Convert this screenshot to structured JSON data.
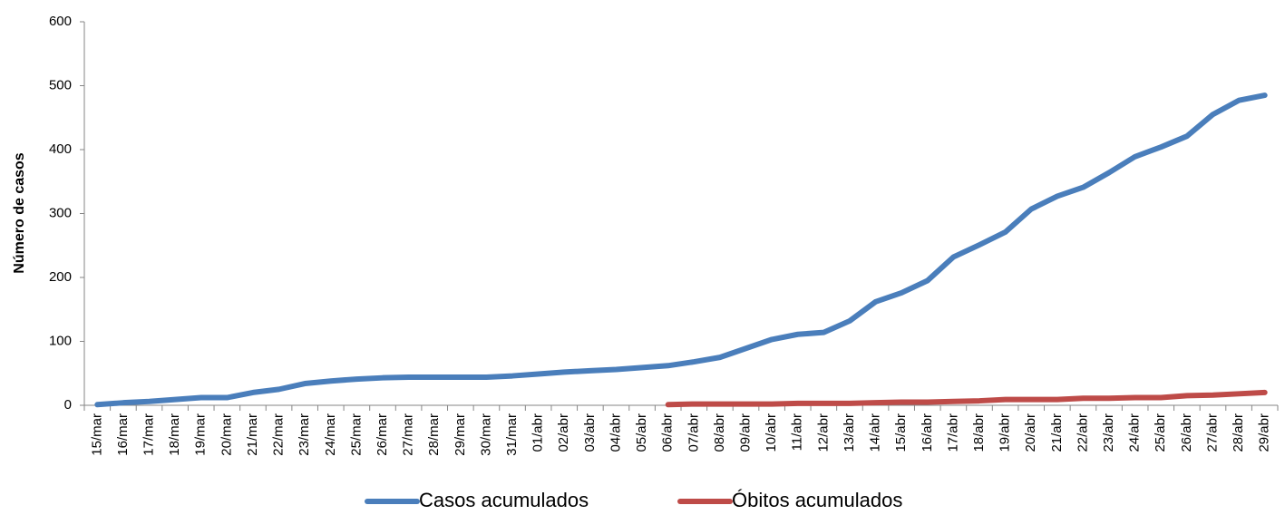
{
  "chart_data": {
    "type": "line",
    "ylabel": "Número de casos",
    "categories": [
      "15/mar",
      "16/mar",
      "17/mar",
      "18/mar",
      "19/mar",
      "20/mar",
      "21/mar",
      "22/mar",
      "23/mar",
      "24/mar",
      "25/mar",
      "26/mar",
      "27/mar",
      "28/mar",
      "29/mar",
      "30/mar",
      "31/mar",
      "01/abr",
      "02/abr",
      "03/abr",
      "04/abr",
      "05/abr",
      "06/abr",
      "07/abr",
      "08/abr",
      "09/abr",
      "10/abr",
      "11/abr",
      "12/abr",
      "13/abr",
      "14/abr",
      "15/abr",
      "16/abr",
      "17/abr",
      "18/abr",
      "19/abr",
      "20/abr",
      "21/abr",
      "22/abr",
      "23/abr",
      "24/abr",
      "25/abr",
      "26/abr",
      "27/abr",
      "28/abr",
      "29/abr"
    ],
    "series": [
      {
        "name": "Casos acumulados",
        "color": "#4a7ebb",
        "values": [
          1,
          4,
          6,
          9,
          12,
          12,
          20,
          25,
          34,
          38,
          41,
          43,
          44,
          44,
          44,
          44,
          46,
          49,
          52,
          54,
          56,
          59,
          62,
          68,
          75,
          89,
          103,
          111,
          114,
          132,
          162,
          176,
          195,
          232,
          251,
          271,
          307,
          327,
          341,
          364,
          389,
          404,
          421,
          455,
          477,
          485
        ]
      },
      {
        "name": "Óbitos acumulados",
        "color": "#be4b48",
        "values": [
          null,
          null,
          null,
          null,
          null,
          null,
          null,
          null,
          null,
          null,
          null,
          null,
          null,
          null,
          null,
          null,
          null,
          null,
          null,
          null,
          null,
          null,
          1,
          2,
          2,
          2,
          2,
          3,
          3,
          3,
          4,
          5,
          5,
          6,
          7,
          9,
          9,
          9,
          11,
          11,
          12,
          12,
          15,
          16,
          18,
          20
        ]
      }
    ],
    "ylim": [
      0,
      600
    ],
    "yticks": [
      0,
      100,
      200,
      300,
      400,
      500,
      600
    ],
    "legend": "bottom"
  }
}
